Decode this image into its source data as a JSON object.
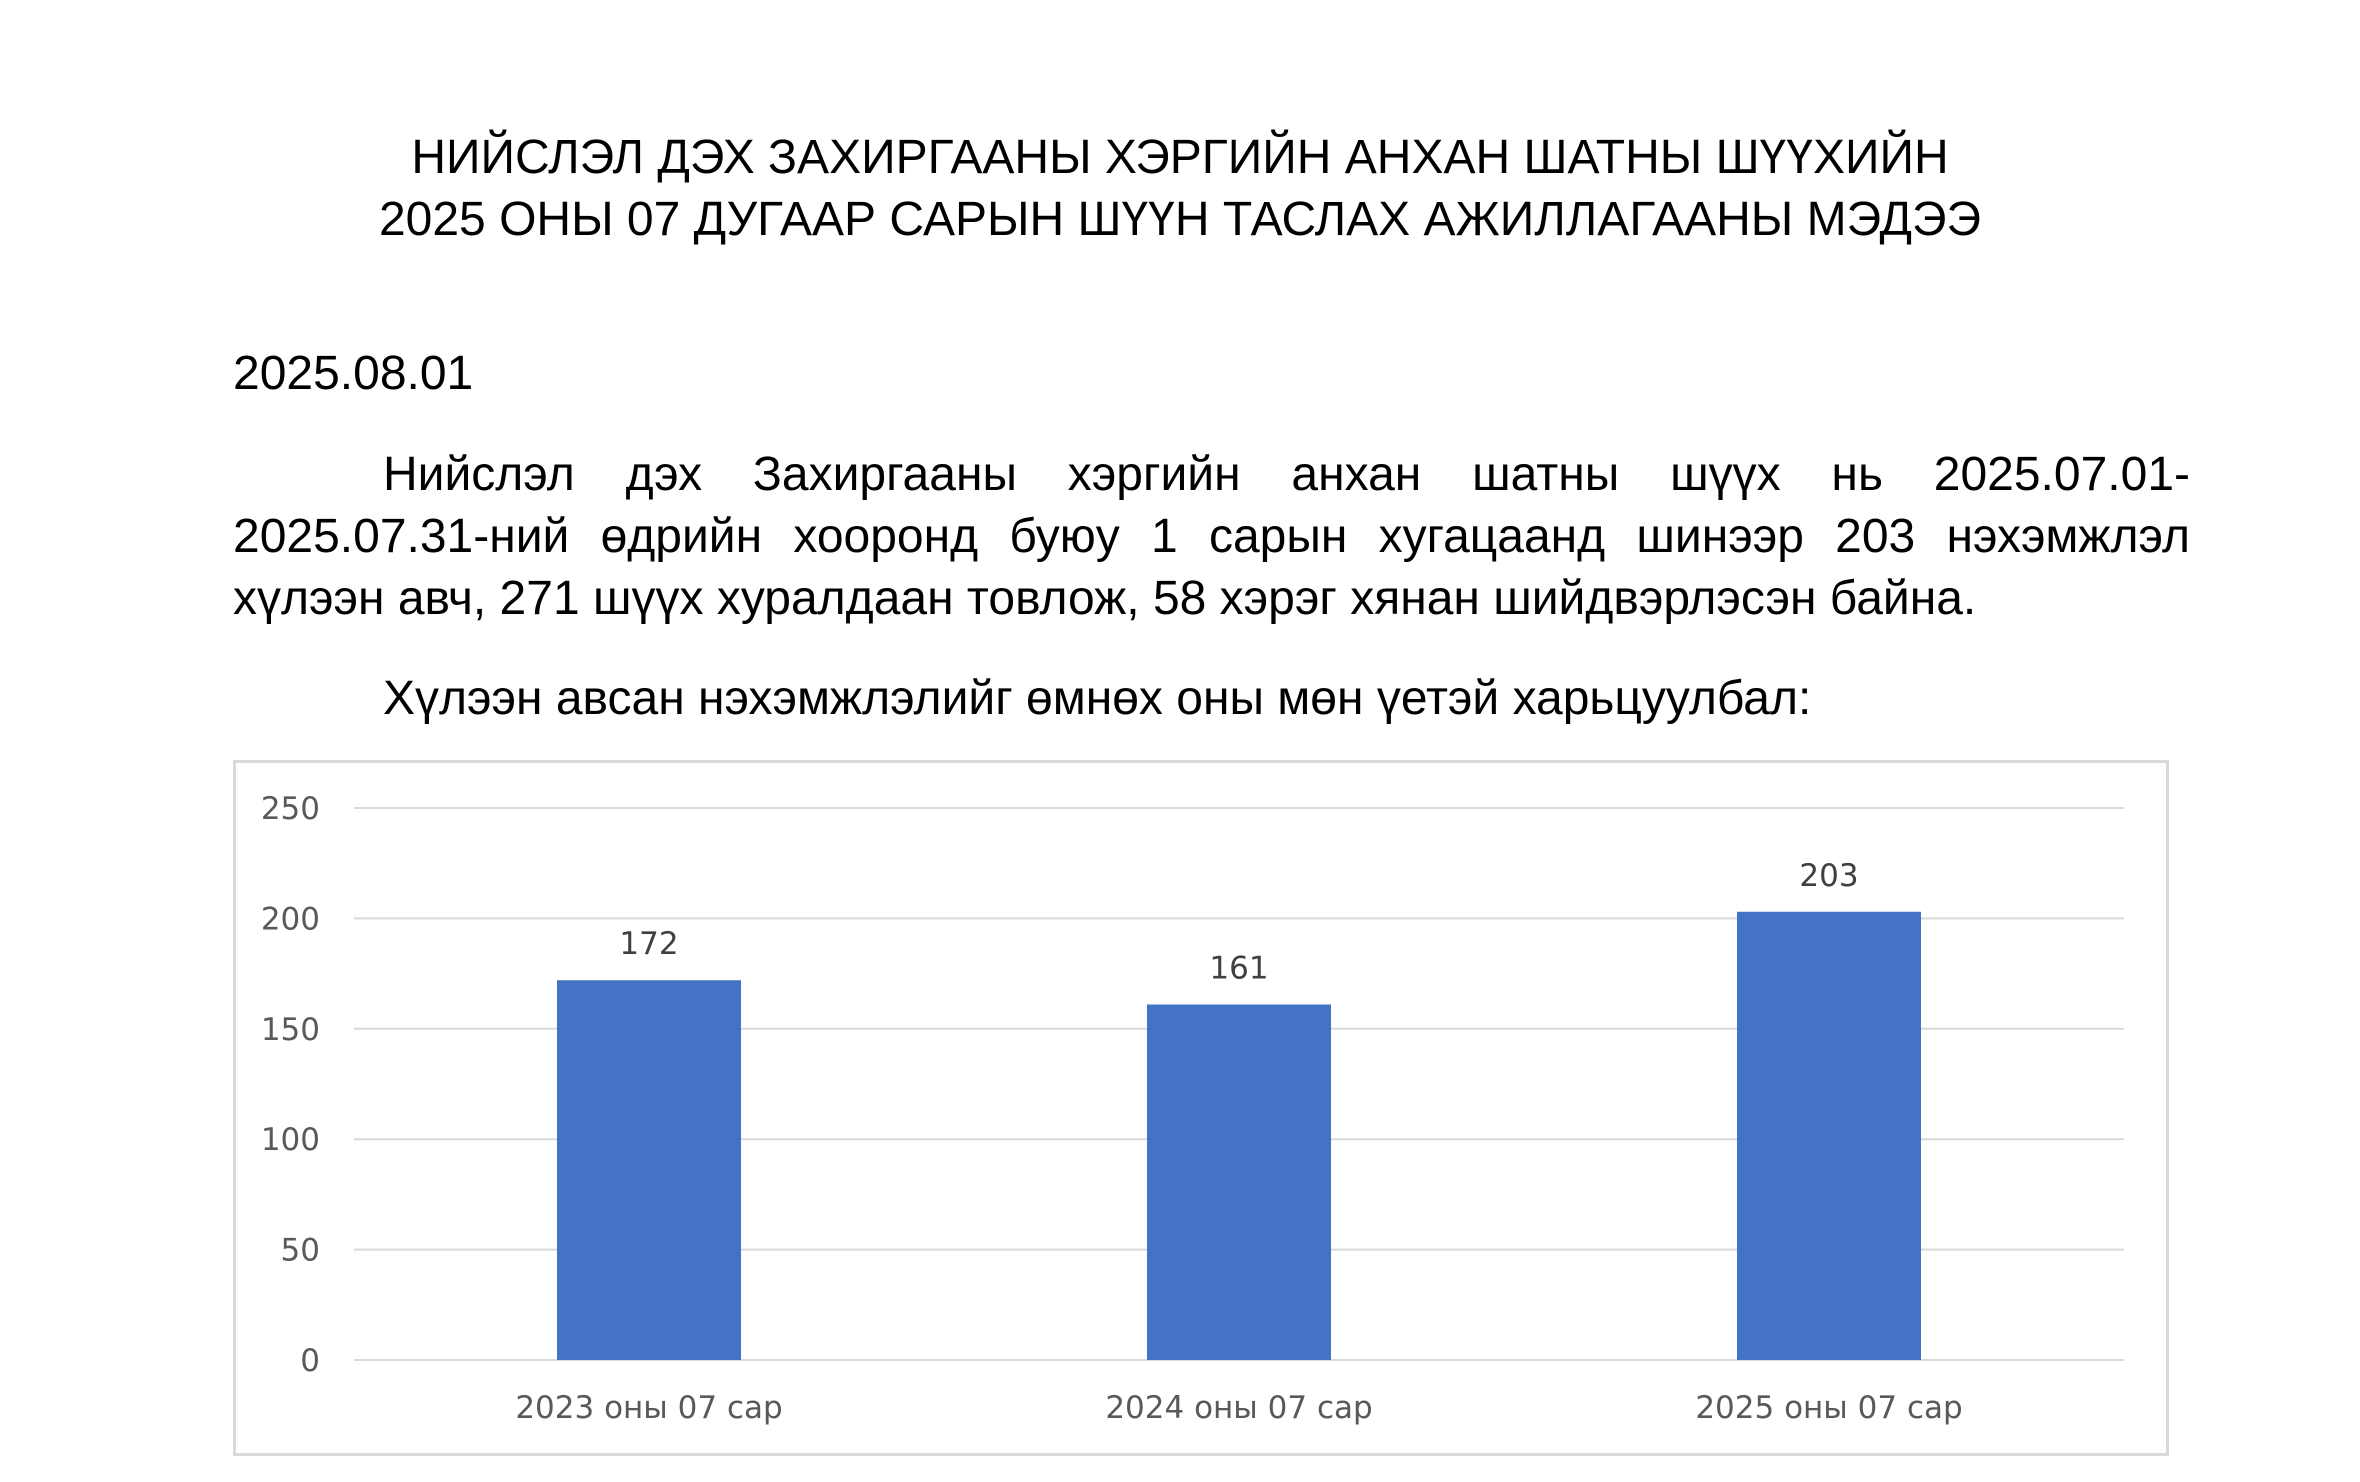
{
  "document": {
    "title_line1": "НИЙСЛЭЛ ДЭХ ЗАХИРГААНЫ ХЭРГИЙН АНХАН ШАТНЫ ШҮҮХИЙН",
    "title_line2": "2025 ОНЫ 07 ДУГААР САРЫН ШҮҮН ТАСЛАХ АЖИЛЛАГААНЫ МЭДЭЭ",
    "date": "2025.08.01",
    "paragraph1_line1": "Нийслэл дэх Захиргааны хэргийн анхан шатны шүүх нь 2025.07.01-",
    "paragraph1_line2": "2025.07.31-ний өдрийн хооронд буюу 1 сарын хугацаанд шинээр 203 нэхэмжлэл",
    "paragraph1_line3": "хүлээн авч, 271 шүүх хуралдаан товлож, 58 хэрэг хянан шийдвэрлэсэн байна.",
    "paragraph2": "Хүлээн авсан нэхэмжлэлийг өмнөх оны мөн үетэй харьцуулбал:"
  },
  "chart_data": {
    "type": "bar",
    "categories": [
      "2023 оны 07 сар",
      "2024 оны 07 сар",
      "2025 оны 07 сар"
    ],
    "values": [
      172,
      161,
      203
    ],
    "data_labels": [
      "172",
      "161",
      "203"
    ],
    "ylim": [
      0,
      250
    ],
    "yticks": [
      0,
      50,
      100,
      150,
      200,
      250
    ],
    "ytick_labels": [
      "0",
      "50",
      "100",
      "150",
      "200",
      "250"
    ],
    "grid": true,
    "legend": "none",
    "bar_color": "#4472c4",
    "grid_color": "#d9d9d9",
    "label_color": "#595959"
  }
}
